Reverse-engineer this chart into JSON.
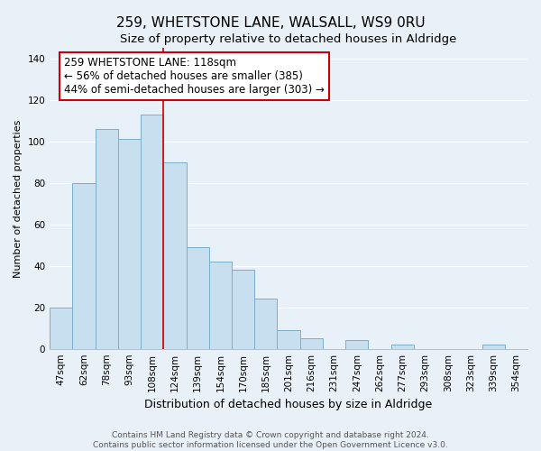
{
  "title": "259, WHETSTONE LANE, WALSALL, WS9 0RU",
  "subtitle": "Size of property relative to detached houses in Aldridge",
  "xlabel": "Distribution of detached houses by size in Aldridge",
  "ylabel": "Number of detached properties",
  "bins": [
    "47sqm",
    "62sqm",
    "78sqm",
    "93sqm",
    "108sqm",
    "124sqm",
    "139sqm",
    "154sqm",
    "170sqm",
    "185sqm",
    "201sqm",
    "216sqm",
    "231sqm",
    "247sqm",
    "262sqm",
    "277sqm",
    "293sqm",
    "308sqm",
    "323sqm",
    "339sqm",
    "354sqm"
  ],
  "values": [
    20,
    80,
    106,
    101,
    113,
    90,
    49,
    42,
    38,
    24,
    9,
    5,
    0,
    4,
    0,
    2,
    0,
    0,
    0,
    2,
    0
  ],
  "bar_color": "#c8dff0",
  "bar_edge_color": "#7aaec8",
  "vline_color": "#cc0000",
  "ylim": [
    0,
    145
  ],
  "yticks": [
    0,
    20,
    40,
    60,
    80,
    100,
    120,
    140
  ],
  "annotation_text": "259 WHETSTONE LANE: 118sqm\n← 56% of detached houses are smaller (385)\n44% of semi-detached houses are larger (303) →",
  "annotation_box_color": "#ffffff",
  "annotation_box_edge": "#cc0000",
  "footer_line1": "Contains HM Land Registry data © Crown copyright and database right 2024.",
  "footer_line2": "Contains public sector information licensed under the Open Government Licence v3.0.",
  "background_color": "#e8f0f8",
  "plot_bg_color": "#e8f0f8",
  "grid_color": "#ffffff",
  "title_fontsize": 11,
  "subtitle_fontsize": 9.5,
  "xlabel_fontsize": 9,
  "ylabel_fontsize": 8,
  "tick_fontsize": 7.5,
  "annotation_fontsize": 8.5,
  "footer_fontsize": 6.5
}
